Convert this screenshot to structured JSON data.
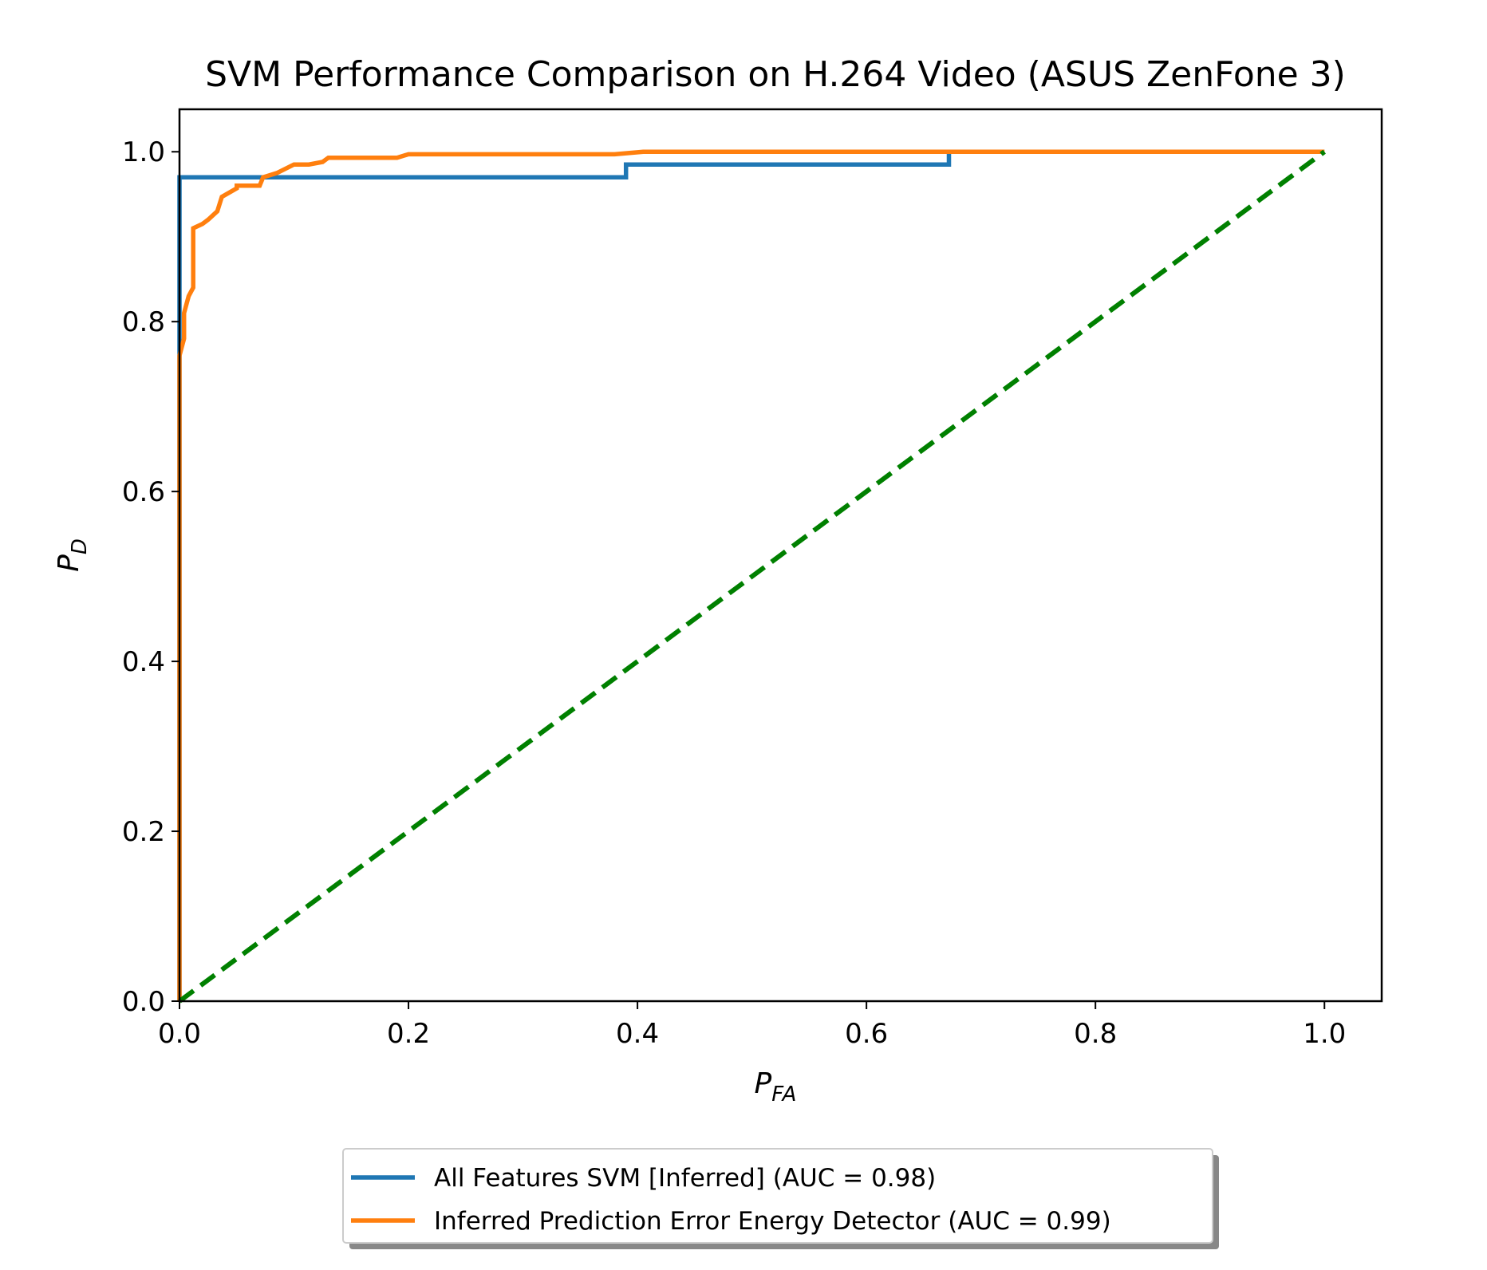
{
  "chart_data": {
    "type": "line",
    "title": "SVM Performance Comparison on H.264 Video (ASUS ZenFone 3)",
    "xlabel": {
      "main": "P",
      "sub": "FA"
    },
    "ylabel": {
      "main": "P",
      "sub": "D"
    },
    "xlim": [
      0.0,
      1.05
    ],
    "ylim": [
      0.0,
      1.05
    ],
    "xticks": [
      "0.0",
      "0.2",
      "0.4",
      "0.6",
      "0.8",
      "1.0"
    ],
    "yticks": [
      "0.0",
      "0.2",
      "0.4",
      "0.6",
      "0.8",
      "1.0"
    ],
    "grid": false,
    "legend_position": "below",
    "series": [
      {
        "name": "All Features SVM [Inferred] (AUC = 0.98)",
        "color": "#1f77b4",
        "style": "solid",
        "points": [
          [
            0.0,
            0.0
          ],
          [
            0.0,
            0.97
          ],
          [
            0.39,
            0.97
          ],
          [
            0.39,
            0.985
          ],
          [
            0.672,
            0.985
          ],
          [
            0.672,
            1.0
          ],
          [
            1.0,
            1.0
          ]
        ]
      },
      {
        "name": "Inferred Prediction Error Energy Detector (AUC = 0.99)",
        "color": "#ff7f0e",
        "style": "solid",
        "points": [
          [
            0.0,
            0.0
          ],
          [
            0.0,
            0.76
          ],
          [
            0.004,
            0.78
          ],
          [
            0.004,
            0.81
          ],
          [
            0.008,
            0.83
          ],
          [
            0.012,
            0.84
          ],
          [
            0.012,
            0.91
          ],
          [
            0.02,
            0.915
          ],
          [
            0.025,
            0.92
          ],
          [
            0.033,
            0.93
          ],
          [
            0.037,
            0.947
          ],
          [
            0.05,
            0.957
          ],
          [
            0.05,
            0.96
          ],
          [
            0.07,
            0.96
          ],
          [
            0.073,
            0.97
          ],
          [
            0.085,
            0.975
          ],
          [
            0.1,
            0.985
          ],
          [
            0.113,
            0.985
          ],
          [
            0.125,
            0.988
          ],
          [
            0.13,
            0.993
          ],
          [
            0.19,
            0.993
          ],
          [
            0.2,
            0.997
          ],
          [
            0.38,
            0.997
          ],
          [
            0.405,
            1.0
          ],
          [
            1.0,
            1.0
          ]
        ]
      },
      {
        "name": "",
        "color": "#008000",
        "style": "dashed",
        "points": [
          [
            0.0,
            0.0
          ],
          [
            1.0,
            1.0
          ]
        ]
      }
    ]
  }
}
